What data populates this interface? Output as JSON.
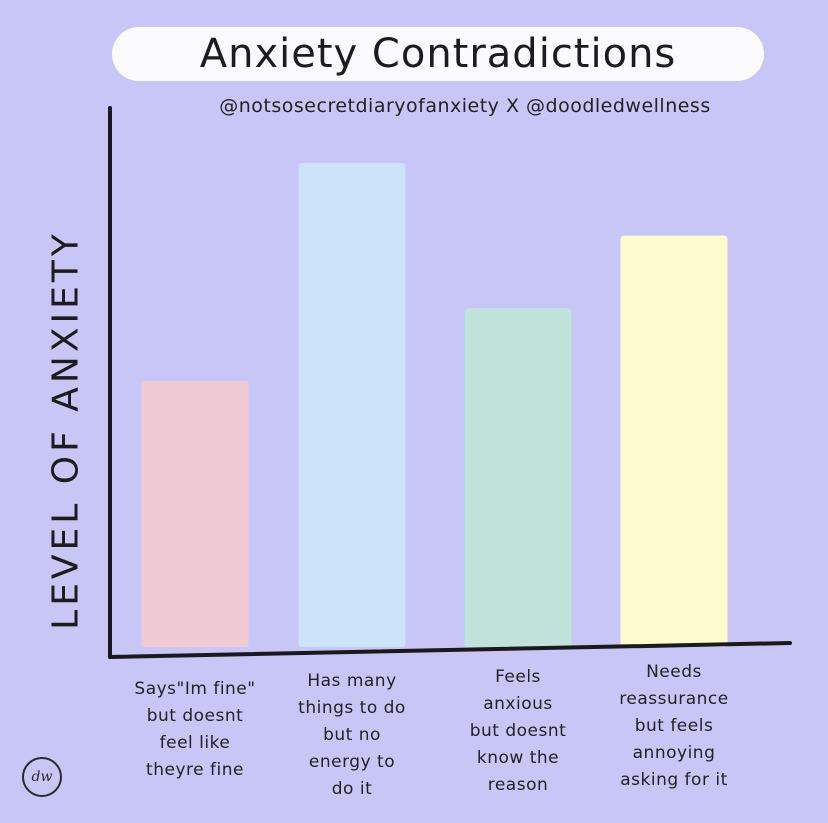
{
  "chart_data": {
    "type": "bar",
    "title": "Anxiety Contradictions",
    "subtitle": "@notsosecretdiaryofanxiety X @doodledwellness",
    "xlabel": "",
    "ylabel": "LEVEL OF ANXIETY",
    "ylim": [
      0,
      100
    ],
    "grid": false,
    "categories": [
      [
        "Says\"Im fine\"",
        "but doesnt",
        "feel like",
        "theyre fine"
      ],
      [
        "Has many",
        "things to do",
        "but no",
        "energy to",
        "do it"
      ],
      [
        "Feels",
        "anxious",
        "but doesnt",
        "know the",
        "reason"
      ],
      [
        "Needs",
        "reassurance",
        "but feels",
        "annoying",
        "asking for it"
      ]
    ],
    "values": [
      55,
      100,
      70,
      85
    ],
    "colors": [
      "#f0cad2",
      "#cde3f9",
      "#bfe3d9",
      "#fdfacd"
    ]
  },
  "logo": {
    "text": "dw"
  }
}
